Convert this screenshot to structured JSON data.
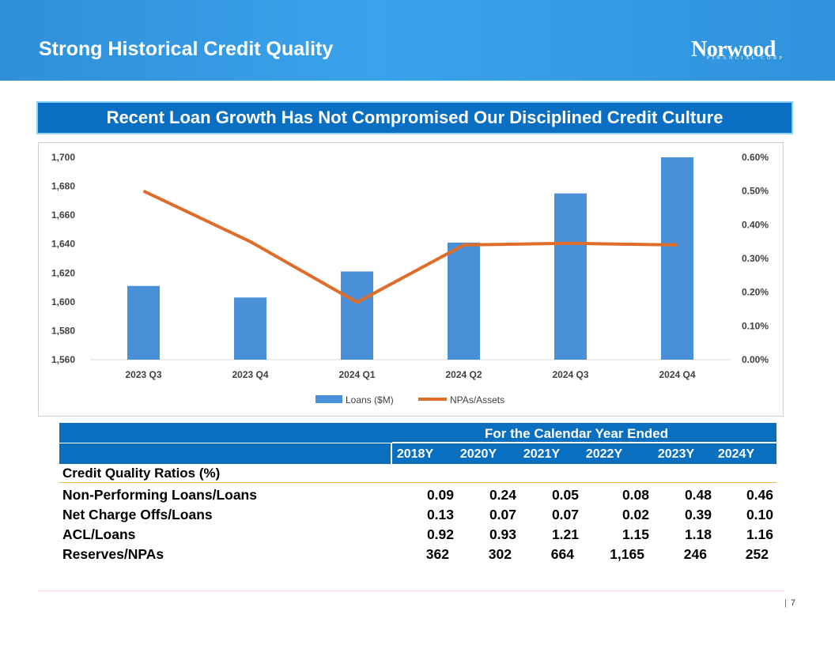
{
  "header": {
    "title": "Strong Historical Credit Quality"
  },
  "logo": {
    "name": "Norwood",
    "subtitle": "FINANCIAL CORP"
  },
  "banner": {
    "text": "Recent Loan Growth Has Not Compromised Our Disciplined Credit Culture"
  },
  "chart_data": {
    "type": "bar",
    "categories": [
      "2023 Q3",
      "2023 Q4",
      "2024 Q1",
      "2024 Q2",
      "2024 Q3",
      "2024 Q4"
    ],
    "series": [
      {
        "name": "Loans ($M)",
        "type": "bar",
        "axis": "left",
        "color": "#4a90d9",
        "values": [
          1611,
          1603,
          1621,
          1641,
          1675,
          1700
        ]
      },
      {
        "name": "NPAs/Assets",
        "type": "line",
        "axis": "right",
        "color": "#e06c2a",
        "values": [
          0.5,
          0.35,
          0.17,
          0.34,
          0.345,
          0.34
        ]
      }
    ],
    "y_left": {
      "min": 1560,
      "max": 1700,
      "ticks": [
        "1,560",
        "1,580",
        "1,600",
        "1,620",
        "1,640",
        "1,660",
        "1,680",
        "1,700"
      ]
    },
    "y_right": {
      "min": 0,
      "max": 0.6,
      "ticks": [
        "0.00%",
        "0.10%",
        "0.20%",
        "0.30%",
        "0.40%",
        "0.50%",
        "0.60%"
      ]
    },
    "legend": [
      "Loans ($M)",
      "NPAs/Assets"
    ],
    "legend_position": "bottom"
  },
  "table": {
    "header_title": "For the Calendar Year Ended",
    "years": [
      "2018Y",
      "2020Y",
      "2021Y",
      "2022Y",
      "2023Y",
      "2024Y"
    ],
    "section_label": "Credit Quality Ratios (%)",
    "rows": [
      {
        "label": "Non-Performing Loans/Loans",
        "values": [
          "0.09",
          "0.24",
          "0.05",
          "0.08",
          "0.48",
          "0.46"
        ]
      },
      {
        "label": "Net Charge Offs/Loans",
        "values": [
          "0.13",
          "0.07",
          "0.07",
          "0.02",
          "0.39",
          "0.10"
        ]
      },
      {
        "label": "ACL/Loans",
        "values": [
          "0.92",
          "0.93",
          "1.21",
          "1.15",
          "1.18",
          "1.16"
        ]
      },
      {
        "label": "Reserves/NPAs",
        "values": [
          "362",
          "302",
          "664",
          "1,165",
          "246",
          "252"
        ]
      }
    ]
  },
  "footer": {
    "page_number": "7"
  }
}
